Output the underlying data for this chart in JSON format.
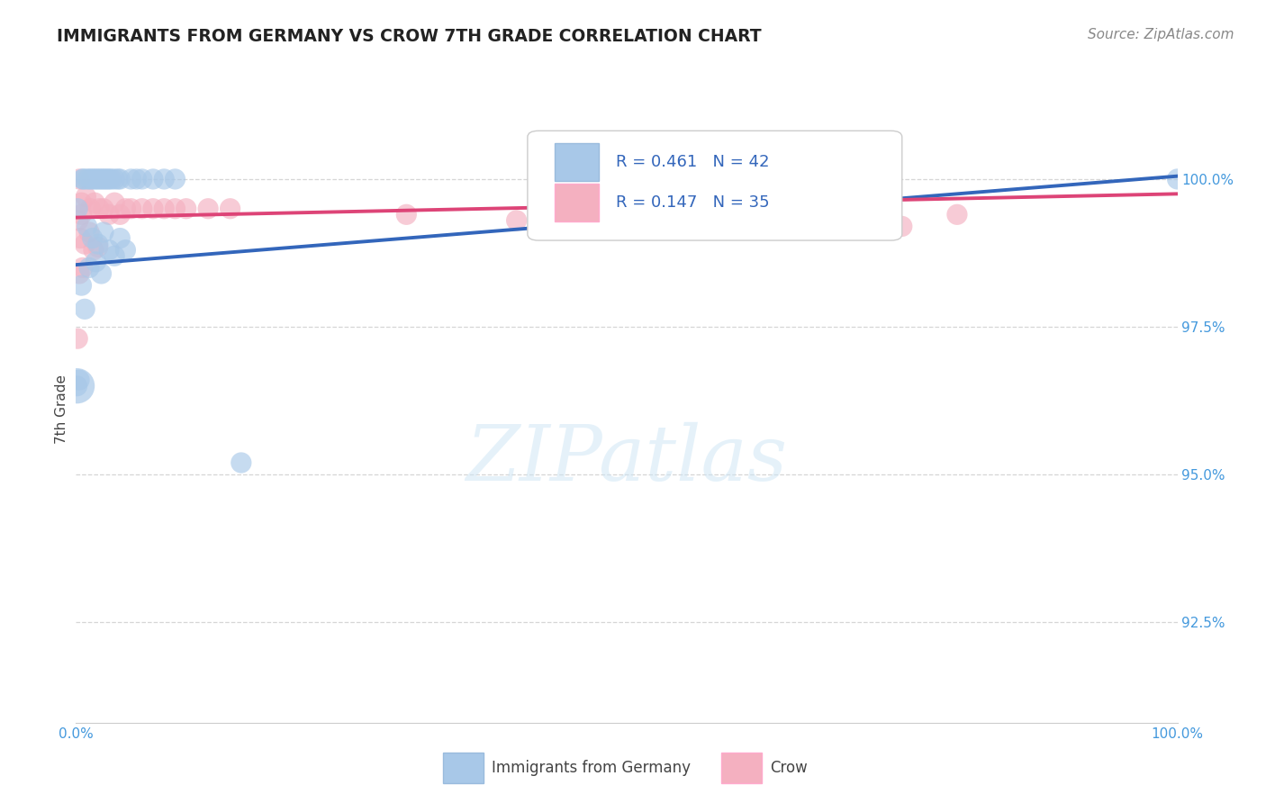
{
  "title": "IMMIGRANTS FROM GERMANY VS CROW 7TH GRADE CORRELATION CHART",
  "source_text": "Source: ZipAtlas.com",
  "ylabel": "7th Grade",
  "x_tick_labels": [
    "0.0%",
    "100.0%"
  ],
  "x_tick_positions": [
    0.0,
    100.0
  ],
  "y_tick_labels": [
    "92.5%",
    "95.0%",
    "97.5%",
    "100.0%"
  ],
  "y_tick_positions": [
    92.5,
    95.0,
    97.5,
    100.0
  ],
  "xlim": [
    0.0,
    100.0
  ],
  "ylim": [
    90.8,
    101.4
  ],
  "legend_label_blue": "Immigrants from Germany",
  "legend_label_pink": "Crow",
  "r_blue": 0.461,
  "n_blue": 42,
  "r_pink": 0.147,
  "n_pink": 35,
  "blue_color": "#a8c8e8",
  "pink_color": "#f4b0c0",
  "blue_line_color": "#3366bb",
  "pink_line_color": "#dd4477",
  "blue_line_x0": 0.0,
  "blue_line_y0": 98.55,
  "blue_line_x1": 100.0,
  "blue_line_y1": 100.05,
  "pink_line_x0": 0.0,
  "pink_line_y0": 99.35,
  "pink_line_x1": 100.0,
  "pink_line_y1": 99.75,
  "blue_dots": [
    [
      0.6,
      100.0
    ],
    [
      0.7,
      100.0
    ],
    [
      1.0,
      100.0
    ],
    [
      1.2,
      100.0
    ],
    [
      1.4,
      100.0
    ],
    [
      1.6,
      100.0
    ],
    [
      1.8,
      100.0
    ],
    [
      2.0,
      100.0
    ],
    [
      2.2,
      100.0
    ],
    [
      2.4,
      100.0
    ],
    [
      2.6,
      100.0
    ],
    [
      2.8,
      100.0
    ],
    [
      3.0,
      100.0
    ],
    [
      3.2,
      100.0
    ],
    [
      3.5,
      100.0
    ],
    [
      3.8,
      100.0
    ],
    [
      4.0,
      100.0
    ],
    [
      5.0,
      100.0
    ],
    [
      5.5,
      100.0
    ],
    [
      6.0,
      100.0
    ],
    [
      7.0,
      100.0
    ],
    [
      8.0,
      100.0
    ],
    [
      9.0,
      100.0
    ],
    [
      1.0,
      99.2
    ],
    [
      1.5,
      99.0
    ],
    [
      2.0,
      98.9
    ],
    [
      2.5,
      99.1
    ],
    [
      3.0,
      98.8
    ],
    [
      3.5,
      98.7
    ],
    [
      4.0,
      99.0
    ],
    [
      4.5,
      98.8
    ],
    [
      1.2,
      98.5
    ],
    [
      1.8,
      98.6
    ],
    [
      2.3,
      98.4
    ],
    [
      0.5,
      98.2
    ],
    [
      0.8,
      97.8
    ],
    [
      0.3,
      96.6
    ],
    [
      0.1,
      96.5
    ],
    [
      15.0,
      95.2
    ],
    [
      100.0,
      100.0
    ],
    [
      55.0,
      100.0
    ],
    [
      0.15,
      99.5
    ]
  ],
  "pink_dots": [
    [
      0.5,
      99.6
    ],
    [
      0.9,
      99.7
    ],
    [
      1.3,
      99.5
    ],
    [
      1.7,
      99.6
    ],
    [
      2.1,
      99.5
    ],
    [
      2.5,
      99.5
    ],
    [
      3.0,
      99.4
    ],
    [
      3.5,
      99.6
    ],
    [
      4.0,
      99.4
    ],
    [
      4.5,
      99.5
    ],
    [
      5.0,
      99.5
    ],
    [
      6.0,
      99.5
    ],
    [
      7.0,
      99.5
    ],
    [
      8.0,
      99.5
    ],
    [
      9.0,
      99.5
    ],
    [
      10.0,
      99.5
    ],
    [
      12.0,
      99.5
    ],
    [
      14.0,
      99.5
    ],
    [
      0.4,
      99.0
    ],
    [
      0.8,
      98.9
    ],
    [
      1.2,
      99.1
    ],
    [
      1.6,
      98.8
    ],
    [
      2.0,
      98.85
    ],
    [
      0.3,
      98.4
    ],
    [
      0.6,
      98.5
    ],
    [
      0.2,
      99.3
    ],
    [
      0.5,
      99.4
    ],
    [
      0.15,
      97.3
    ],
    [
      65.0,
      99.5
    ],
    [
      75.0,
      99.2
    ],
    [
      80.0,
      99.4
    ],
    [
      55.0,
      99.4
    ],
    [
      40.0,
      99.3
    ],
    [
      30.0,
      99.4
    ],
    [
      0.3,
      100.0
    ]
  ],
  "watermark_text": "ZIPatlas",
  "background_color": "#ffffff",
  "grid_color": "#cccccc"
}
